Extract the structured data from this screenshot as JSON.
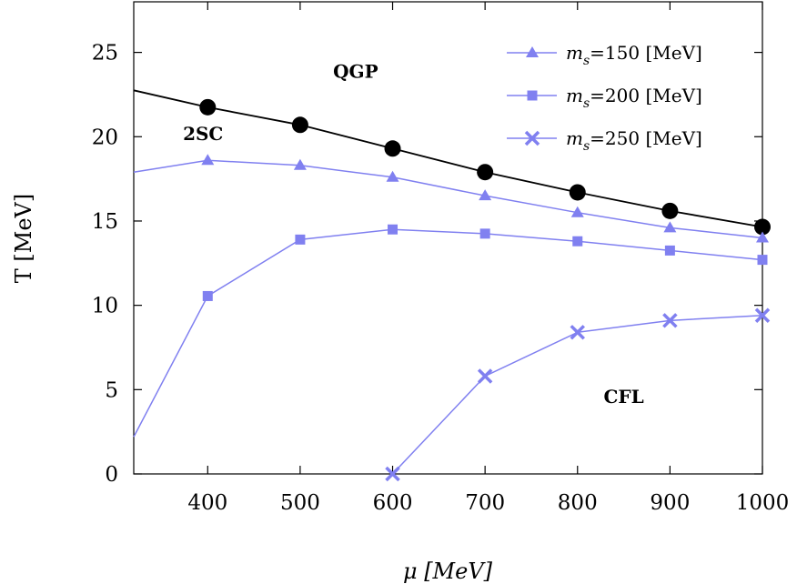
{
  "chart_data": {
    "type": "line",
    "xlabel": "μ [MeV]",
    "ylabel": "T [MeV]",
    "xlim": [
      320,
      1000
    ],
    "ylim": [
      0,
      28
    ],
    "x_ticks": [
      400,
      500,
      600,
      700,
      800,
      900,
      1000
    ],
    "y_ticks": [
      0,
      5,
      10,
      15,
      20,
      25
    ],
    "grid": false,
    "legend_position": "top-right",
    "annotations": [
      {
        "text": "QGP",
        "x": 560,
        "y": 23.5
      },
      {
        "text": "2SC",
        "x": 395,
        "y": 19.8
      },
      {
        "text": "CFL",
        "x": 850,
        "y": 4.2
      }
    ],
    "series": [
      {
        "name": "",
        "color": "#000000",
        "marker": "circle",
        "x": [
          320,
          400,
          500,
          600,
          700,
          800,
          900,
          1000
        ],
        "y": [
          22.75,
          21.75,
          20.7,
          19.3,
          17.9,
          16.7,
          15.6,
          14.65
        ]
      },
      {
        "name": "=150 [MeV]",
        "color": "#8080f0",
        "marker": "triangle",
        "x": [
          320,
          400,
          500,
          600,
          700,
          800,
          900,
          1000
        ],
        "y": [
          17.9,
          18.6,
          18.3,
          17.6,
          16.5,
          15.5,
          14.6,
          14.0
        ]
      },
      {
        "name": "=200 [MeV]",
        "color": "#8080f0",
        "marker": "square",
        "x": [
          320,
          400,
          500,
          600,
          700,
          800,
          900,
          1000
        ],
        "y": [
          2.2,
          10.55,
          13.9,
          14.5,
          14.25,
          13.8,
          13.25,
          12.7
        ]
      },
      {
        "name": "=250 [MeV]",
        "color": "#8080f0",
        "marker": "x",
        "x": [
          600,
          700,
          800,
          900,
          1000
        ],
        "y": [
          0.0,
          5.8,
          8.4,
          9.1,
          9.4
        ]
      }
    ],
    "legend_symbol_main": "m",
    "legend_symbol_sub": "s"
  }
}
